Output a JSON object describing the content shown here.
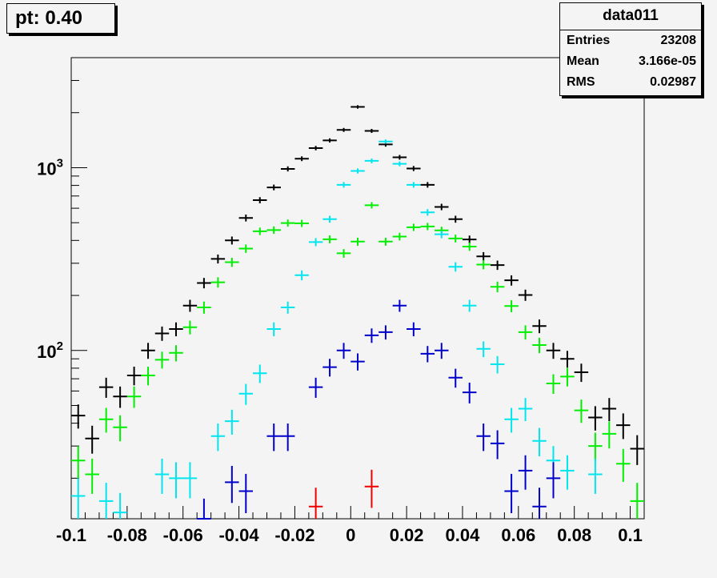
{
  "title_box": {
    "text": "pt: 0.40"
  },
  "stats_box": {
    "name": "data011",
    "rows": [
      {
        "label": "Entries",
        "value": "23208"
      },
      {
        "label": "Mean",
        "value": "3.166e-05"
      },
      {
        "label": "RMS",
        "value": "0.02987"
      }
    ]
  },
  "chart_data": {
    "type": "scatter",
    "title": "",
    "xlabel": "",
    "ylabel": "",
    "xlim": [
      -0.1,
      0.105
    ],
    "ylim": [
      12,
      4000
    ],
    "yscale": "log",
    "grid": false,
    "x_ticks": [
      "-0.1",
      "-0.08",
      "-0.06",
      "-0.04",
      "-0.02",
      "0",
      "0.02",
      "0.04",
      "0.06",
      "0.08",
      "0.1"
    ],
    "y_ticks": [
      {
        "value": 100,
        "base": "10",
        "exp": "2"
      },
      {
        "value": 1000,
        "base": "10",
        "exp": "3"
      }
    ],
    "bin_half_width": 0.0025,
    "series": [
      {
        "color": "#000000",
        "points": [
          [
            -0.0975,
            44
          ],
          [
            -0.0925,
            33
          ],
          [
            -0.0875,
            63
          ],
          [
            -0.0825,
            56
          ],
          [
            -0.0775,
            73
          ],
          [
            -0.0725,
            100
          ],
          [
            -0.0675,
            124
          ],
          [
            -0.0625,
            131
          ],
          [
            -0.0575,
            176
          ],
          [
            -0.0525,
            234
          ],
          [
            -0.0475,
            317
          ],
          [
            -0.0425,
            400
          ],
          [
            -0.0375,
            531
          ],
          [
            -0.0325,
            664
          ],
          [
            -0.0275,
            780
          ],
          [
            -0.0225,
            985
          ],
          [
            -0.0175,
            1120
          ],
          [
            -0.0125,
            1280
          ],
          [
            -0.0075,
            1410
          ],
          [
            -0.0025,
            1610
          ],
          [
            0.0025,
            2150
          ],
          [
            0.0075,
            1590
          ],
          [
            0.0125,
            1340
          ],
          [
            0.0175,
            1140
          ],
          [
            0.0225,
            990
          ],
          [
            0.0275,
            806
          ],
          [
            0.0325,
            610
          ],
          [
            0.0375,
            523
          ],
          [
            0.0425,
            405
          ],
          [
            0.0475,
            327
          ],
          [
            0.0525,
            293
          ],
          [
            0.0575,
            242
          ],
          [
            0.0625,
            201
          ],
          [
            0.0675,
            136
          ],
          [
            0.0725,
            100
          ],
          [
            0.0775,
            90
          ],
          [
            0.0825,
            76
          ],
          [
            0.0875,
            43
          ],
          [
            0.0925,
            48
          ],
          [
            0.0975,
            39
          ],
          [
            0.1025,
            29
          ],
          [
            0.1075,
            27
          ]
        ]
      },
      {
        "color": "#00ee00",
        "points": [
          [
            -0.0975,
            25
          ],
          [
            -0.0925,
            21
          ],
          [
            -0.0875,
            42
          ],
          [
            -0.0825,
            38
          ],
          [
            -0.0775,
            56
          ],
          [
            -0.0725,
            73
          ],
          [
            -0.0675,
            89
          ],
          [
            -0.0625,
            97
          ],
          [
            -0.0575,
            134
          ],
          [
            -0.0525,
            172
          ],
          [
            -0.0475,
            236
          ],
          [
            -0.0425,
            304
          ],
          [
            -0.0375,
            361
          ],
          [
            -0.0325,
            449
          ],
          [
            -0.0275,
            456
          ],
          [
            -0.0225,
            498
          ],
          [
            -0.0175,
            496
          ],
          [
            -0.0075,
            406
          ],
          [
            -0.0025,
            340
          ],
          [
            0.0025,
            394
          ],
          [
            0.0075,
            623
          ],
          [
            0.0125,
            394
          ],
          [
            0.0175,
            420
          ],
          [
            0.0225,
            472
          ],
          [
            0.0275,
            477
          ],
          [
            0.0325,
            454
          ],
          [
            0.0375,
            410
          ],
          [
            0.0425,
            370
          ],
          [
            0.0475,
            295
          ],
          [
            0.0525,
            223
          ],
          [
            0.0575,
            175
          ],
          [
            0.0625,
            126
          ],
          [
            0.0675,
            107
          ],
          [
            0.0725,
            66
          ],
          [
            0.0775,
            72
          ],
          [
            0.0825,
            47
          ],
          [
            0.0875,
            30
          ],
          [
            0.0925,
            35
          ],
          [
            0.0975,
            24
          ],
          [
            0.1025,
            15
          ],
          [
            0.1075,
            19
          ]
        ]
      },
      {
        "color": "#00e5ee",
        "points": [
          [
            -0.0975,
            16
          ],
          [
            -0.0875,
            15
          ],
          [
            -0.0825,
            13
          ],
          [
            -0.0675,
            21
          ],
          [
            -0.0625,
            20
          ],
          [
            -0.0575,
            20
          ],
          [
            -0.0475,
            34
          ],
          [
            -0.0425,
            41
          ],
          [
            -0.0375,
            58
          ],
          [
            -0.0325,
            75
          ],
          [
            -0.0275,
            131
          ],
          [
            -0.0225,
            172
          ],
          [
            -0.0175,
            258
          ],
          [
            -0.0125,
            392
          ],
          [
            -0.0075,
            523
          ],
          [
            -0.0025,
            806
          ],
          [
            0.0025,
            960
          ],
          [
            0.0075,
            1090
          ],
          [
            0.0125,
            1390
          ],
          [
            0.0175,
            1050
          ],
          [
            0.0225,
            806
          ],
          [
            0.0275,
            570
          ],
          [
            0.0325,
            432
          ],
          [
            0.0375,
            287
          ],
          [
            0.0425,
            176
          ],
          [
            0.0475,
            102
          ],
          [
            0.0525,
            84
          ],
          [
            0.0575,
            42
          ],
          [
            0.0625,
            48
          ],
          [
            0.0675,
            32
          ],
          [
            0.0725,
            25
          ],
          [
            0.0775,
            22
          ],
          [
            0.0875,
            21
          ]
        ]
      },
      {
        "color": "#0000cc",
        "points": [
          [
            -0.0525,
            12
          ],
          [
            -0.0425,
            19
          ],
          [
            -0.0375,
            17
          ],
          [
            -0.0275,
            34
          ],
          [
            -0.0225,
            34
          ],
          [
            -0.0125,
            63
          ],
          [
            -0.0075,
            81
          ],
          [
            -0.0025,
            100
          ],
          [
            0.0025,
            87
          ],
          [
            0.0075,
            121
          ],
          [
            0.0125,
            126
          ],
          [
            0.0175,
            176
          ],
          [
            0.0225,
            131
          ],
          [
            0.0275,
            96
          ],
          [
            0.0325,
            100
          ],
          [
            0.0375,
            71
          ],
          [
            0.0425,
            59
          ],
          [
            0.0475,
            34
          ],
          [
            0.0525,
            31
          ],
          [
            0.0575,
            17
          ],
          [
            0.0625,
            22
          ],
          [
            0.0675,
            14
          ],
          [
            0.0725,
            20
          ]
        ]
      },
      {
        "color": "#ee0000",
        "points": [
          [
            -0.0125,
            14
          ],
          [
            0.0075,
            18
          ]
        ]
      }
    ]
  }
}
